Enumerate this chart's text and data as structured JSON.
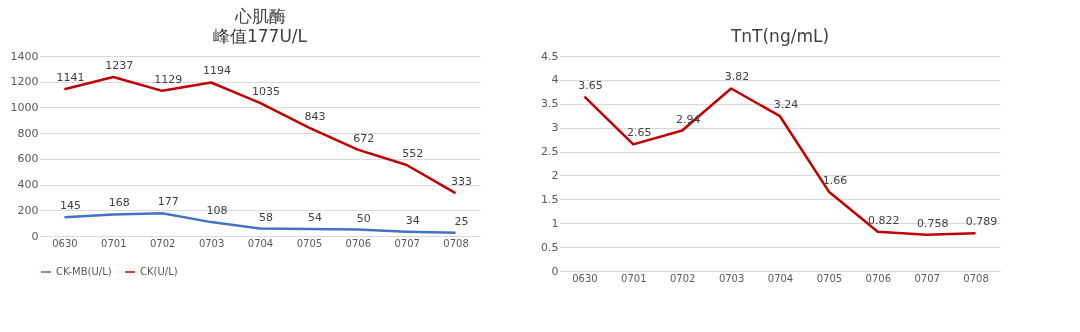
{
  "chart_data": [
    {
      "type": "line",
      "title": "心肌酶",
      "subtitle": "峰值177U/L",
      "categories": [
        "0630",
        "0701",
        "0702",
        "0703",
        "0704",
        "0705",
        "0706",
        "0707",
        "0708"
      ],
      "series": [
        {
          "name": "CK-MB(U/L)",
          "color": "#4472c4",
          "values": [
            145,
            168,
            177,
            108,
            58,
            54,
            50,
            34,
            25
          ]
        },
        {
          "name": "CK(U/L)",
          "color": "#c00000",
          "values": [
            1141,
            1237,
            1129,
            1194,
            1035,
            843,
            672,
            552,
            333
          ]
        }
      ],
      "ylim": [
        0,
        1400
      ],
      "yticks": [
        0,
        200,
        400,
        600,
        800,
        1000,
        1200,
        1400
      ],
      "grid": "y",
      "legend": "bottom",
      "data_labels": true,
      "marker": "none",
      "line_style": "solid"
    },
    {
      "type": "line",
      "title": "TnT(ng/mL)",
      "categories": [
        "0630",
        "0701",
        "0702",
        "0703",
        "0704",
        "0705",
        "0706",
        "0707",
        "0708"
      ],
      "series": [
        {
          "color": "#c00000",
          "values": [
            3.65,
            2.65,
            2.94,
            3.82,
            3.24,
            1.66,
            0.822,
            0.758,
            0.789
          ]
        }
      ],
      "ylim": [
        0,
        4.5
      ],
      "yticks": [
        0,
        0.5,
        1,
        1.5,
        2,
        2.5,
        3,
        3.5,
        4,
        4.5
      ],
      "grid": "y",
      "legend": false,
      "data_labels": true,
      "marker": "none",
      "line_style": "solid"
    }
  ]
}
